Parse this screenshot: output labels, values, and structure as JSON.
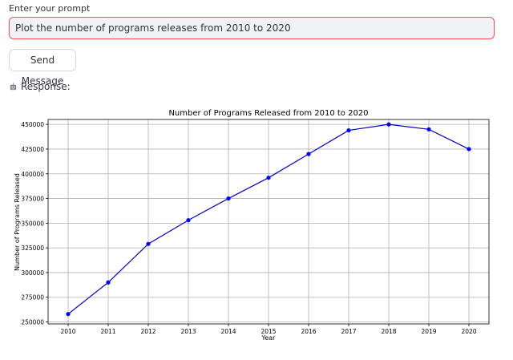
{
  "prompt": {
    "label": "Enter your prompt",
    "value": "Plot the number of programs releases from 2010 to 2020"
  },
  "send_button": {
    "label": "Send Message"
  },
  "response": {
    "icon": "robot-icon",
    "label": "Response:"
  },
  "colors": {
    "accent": "#ff4b4b",
    "series": "#0000cc",
    "marker": "#0000ff"
  },
  "chart_data": {
    "type": "line",
    "title": "Number of Programs Released from 2010 to 2020",
    "xlabel": "Year",
    "ylabel": "Number of Programs Released",
    "x": [
      "2010",
      "2011",
      "2012",
      "2013",
      "2014",
      "2015",
      "2016",
      "2017",
      "2018",
      "2019",
      "2020"
    ],
    "y": [
      258000,
      290000,
      329000,
      353000,
      375000,
      396000,
      420000,
      444000,
      450000,
      445000,
      425000
    ],
    "yticks": [
      "250000",
      "275000",
      "300000",
      "325000",
      "350000",
      "375000",
      "400000",
      "425000",
      "450000"
    ],
    "ylim": [
      248000,
      455000
    ],
    "grid": true,
    "marker": "circle"
  }
}
